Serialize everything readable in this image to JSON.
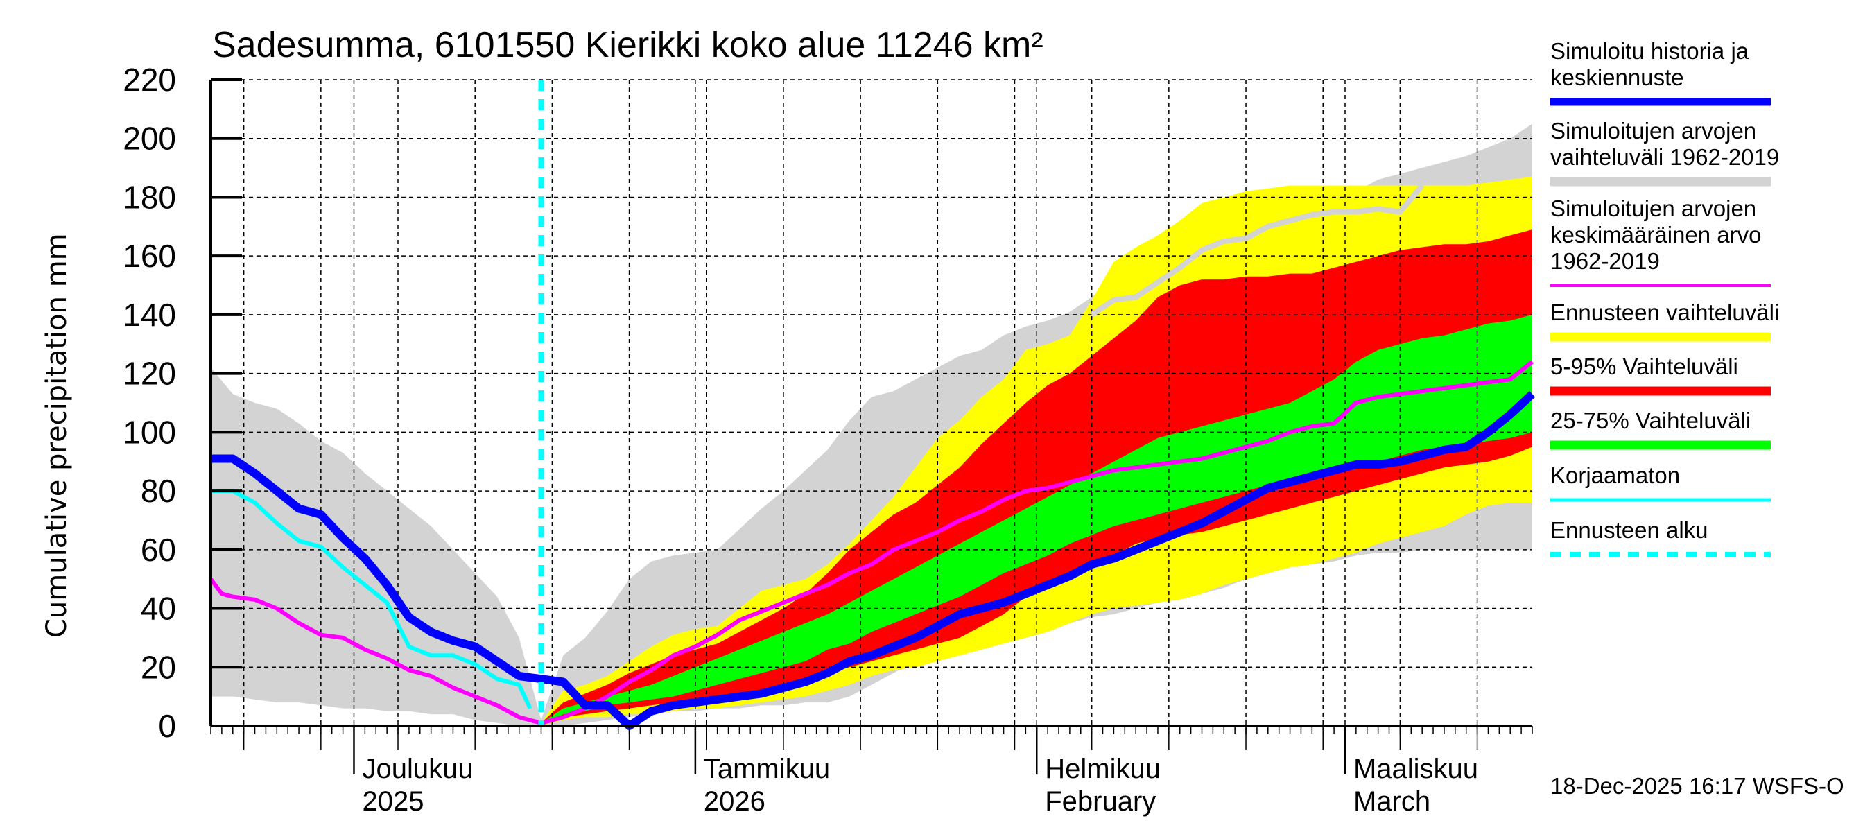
{
  "chart_data": {
    "type": "area",
    "title": "Sadesumma, 6101550 Kierikki koko alue 11246 km²",
    "ylabel": "Cumulative precipitation   mm",
    "xlabel": "",
    "ylim": [
      0,
      220
    ],
    "yticks": [
      0,
      20,
      40,
      60,
      80,
      100,
      120,
      140,
      160,
      180,
      200,
      220
    ],
    "grid": true,
    "x_unit": "days since 18-Nov-2025",
    "xlim": [
      0,
      120
    ],
    "forecast_start_day": 30,
    "month_ticks": [
      {
        "day": 13,
        "line1": "Joulukuu",
        "line2": "2025"
      },
      {
        "day": 44,
        "line1": "Tammikuu",
        "line2": "2026"
      },
      {
        "day": 75,
        "line1": "Helmikuu",
        "line2": "February"
      },
      {
        "day": 103,
        "line1": "Maaliskuu",
        "line2": "March"
      }
    ],
    "legend_position": "right",
    "legend": [
      {
        "key": "history",
        "label_lines": [
          "Simuloitu historia ja",
          "keskiennuste"
        ],
        "color": "#0000ff",
        "style": "thick-line"
      },
      {
        "key": "hist_range",
        "label_lines": [
          "Simuloitujen arvojen",
          "vaihteluväli 1962-2019"
        ],
        "color": "#d3d3d3",
        "style": "band"
      },
      {
        "key": "hist_mean",
        "label_lines": [
          "Simuloitujen arvojen",
          "keskimääräinen arvo",
          "   1962-2019"
        ],
        "color": "#ff00ff",
        "style": "line"
      },
      {
        "key": "fc_range",
        "label_lines": [
          "Ennusteen vaihteluväli"
        ],
        "color": "#ffff00",
        "style": "band"
      },
      {
        "key": "p5_95",
        "label_lines": [
          "5-95% Vaihteluväli"
        ],
        "color": "#ff0000",
        "style": "band"
      },
      {
        "key": "p25_75",
        "label_lines": [
          "25-75% Vaihteluväli"
        ],
        "color": "#00ff00",
        "style": "band"
      },
      {
        "key": "uncorrected",
        "label_lines": [
          "Korjaamaton"
        ],
        "color": "#00ffff",
        "style": "line"
      },
      {
        "key": "fc_start",
        "label_lines": [
          "Ennusteen alku"
        ],
        "color": "#00ffff",
        "style": "dashed"
      }
    ],
    "series": {
      "hist_range_upper": {
        "x": [
          0,
          2,
          4,
          6,
          8,
          10,
          12,
          14,
          16,
          18,
          20,
          22,
          24,
          26,
          28,
          30,
          32,
          34,
          36,
          38,
          40,
          42,
          44,
          46,
          48,
          50,
          52,
          54,
          56,
          58,
          60,
          62,
          64,
          66,
          68,
          70,
          72,
          74,
          76,
          78,
          80,
          82,
          84,
          86,
          88,
          90,
          92,
          94,
          96,
          98,
          100,
          102,
          104,
          106,
          108,
          110,
          112,
          114,
          116,
          118,
          120
        ],
        "values": [
          122,
          113,
          110,
          108,
          103,
          97,
          93,
          86,
          80,
          74,
          68,
          60,
          52,
          44,
          30,
          2,
          24,
          30,
          39,
          50,
          56,
          58,
          59,
          60,
          67,
          74,
          80,
          87,
          94,
          104,
          112,
          114,
          118,
          122,
          126,
          128,
          133,
          136,
          138,
          141,
          146,
          152,
          156,
          160,
          164,
          166,
          170,
          172,
          174,
          176,
          176,
          176,
          182,
          186,
          188,
          190,
          192,
          194,
          197,
          200,
          205
        ]
      },
      "hist_range_lower": {
        "x": [
          0,
          2,
          4,
          6,
          8,
          10,
          12,
          14,
          16,
          18,
          20,
          22,
          24,
          26,
          28,
          30,
          32,
          34,
          36,
          38,
          40,
          42,
          44,
          46,
          48,
          50,
          52,
          54,
          56,
          58,
          60,
          62,
          64,
          66,
          68,
          70,
          72,
          74,
          76,
          78,
          80,
          82,
          84,
          86,
          88,
          90,
          92,
          94,
          96,
          98,
          100,
          102,
          104,
          106,
          108,
          110,
          112,
          114,
          116,
          118,
          120
        ],
        "values": [
          10,
          10,
          9,
          8,
          8,
          7,
          6,
          6,
          5,
          5,
          4,
          4,
          2,
          1,
          0,
          0,
          0,
          1,
          2,
          3,
          4,
          5,
          5,
          6,
          6,
          7,
          7,
          8,
          8,
          10,
          14,
          18,
          22,
          24,
          26,
          27,
          28,
          30,
          32,
          35,
          37,
          38,
          40,
          42,
          43,
          45,
          47,
          50,
          52,
          54,
          55,
          56,
          58,
          59,
          59,
          60,
          60,
          60,
          60,
          60,
          60
        ]
      },
      "fc_range_upper": {
        "x": [
          30,
          32,
          34,
          36,
          38,
          40,
          42,
          44,
          46,
          48,
          50,
          52,
          54,
          56,
          58,
          60,
          62,
          64,
          66,
          68,
          70,
          72,
          74,
          76,
          78,
          80,
          82,
          84,
          86,
          88,
          90,
          92,
          94,
          96,
          98,
          100,
          102,
          104,
          106,
          108,
          110,
          112,
          114,
          116,
          118,
          120
        ],
        "values": [
          1,
          12,
          14,
          17,
          22,
          27,
          31,
          33,
          34,
          40,
          46,
          48,
          50,
          55,
          62,
          70,
          78,
          88,
          98,
          104,
          112,
          118,
          128,
          130,
          133,
          145,
          158,
          163,
          167,
          172,
          178,
          180,
          182,
          183,
          184,
          184,
          184,
          184,
          184,
          184,
          184,
          184,
          184,
          185,
          186,
          187
        ]
      },
      "fc_range_lower": {
        "x": [
          30,
          32,
          34,
          36,
          38,
          40,
          42,
          44,
          46,
          48,
          50,
          52,
          54,
          56,
          58,
          60,
          62,
          64,
          66,
          68,
          70,
          72,
          74,
          76,
          78,
          80,
          82,
          84,
          86,
          88,
          90,
          92,
          94,
          96,
          98,
          100,
          102,
          104,
          106,
          108,
          110,
          112,
          114,
          116,
          118,
          120
        ],
        "values": [
          0,
          2,
          3,
          3,
          4,
          4,
          5,
          6,
          6,
          7,
          8,
          9,
          10,
          12,
          14,
          17,
          19,
          20,
          22,
          24,
          26,
          28,
          30,
          32,
          35,
          38,
          40,
          41,
          42,
          43,
          45,
          48,
          50,
          52,
          54,
          55,
          57,
          59,
          62,
          64,
          66,
          68,
          72,
          75,
          76,
          76
        ]
      },
      "p5_95_upper": {
        "x": [
          30,
          32,
          34,
          36,
          38,
          40,
          42,
          44,
          46,
          48,
          50,
          52,
          54,
          56,
          58,
          60,
          62,
          64,
          66,
          68,
          70,
          72,
          74,
          76,
          78,
          80,
          82,
          84,
          86,
          88,
          90,
          92,
          94,
          96,
          98,
          100,
          102,
          104,
          106,
          108,
          110,
          112,
          114,
          116,
          118,
          120
        ],
        "values": [
          1,
          8,
          11,
          14,
          18,
          21,
          24,
          26,
          28,
          32,
          36,
          40,
          45,
          52,
          60,
          66,
          72,
          76,
          82,
          88,
          96,
          103,
          110,
          116,
          120,
          126,
          132,
          138,
          146,
          150,
          152,
          152,
          153,
          153,
          154,
          154,
          156,
          158,
          160,
          162,
          163,
          164,
          164,
          165,
          167,
          169
        ]
      },
      "p5_95_lower": {
        "x": [
          30,
          32,
          34,
          36,
          38,
          40,
          42,
          44,
          46,
          48,
          50,
          52,
          54,
          56,
          58,
          60,
          62,
          64,
          66,
          68,
          70,
          72,
          74,
          76,
          78,
          80,
          82,
          84,
          86,
          88,
          90,
          92,
          94,
          96,
          98,
          100,
          102,
          104,
          106,
          108,
          110,
          112,
          114,
          116,
          118,
          120
        ],
        "values": [
          0,
          3,
          4,
          5,
          6,
          7,
          8,
          9,
          10,
          11,
          12,
          14,
          16,
          18,
          20,
          22,
          24,
          26,
          28,
          30,
          34,
          38,
          44,
          48,
          50,
          54,
          58,
          62,
          64,
          65,
          66,
          68,
          70,
          72,
          74,
          76,
          78,
          80,
          82,
          84,
          86,
          88,
          89,
          90,
          92,
          95
        ]
      },
      "p25_75_upper": {
        "x": [
          30,
          32,
          34,
          36,
          38,
          40,
          42,
          44,
          46,
          48,
          50,
          52,
          54,
          56,
          58,
          60,
          62,
          64,
          66,
          68,
          70,
          72,
          74,
          76,
          78,
          80,
          82,
          84,
          86,
          88,
          90,
          92,
          94,
          96,
          98,
          100,
          102,
          104,
          106,
          108,
          110,
          112,
          114,
          116,
          118,
          120
        ],
        "values": [
          1,
          6,
          8,
          10,
          12,
          14,
          17,
          20,
          23,
          26,
          29,
          32,
          35,
          38,
          42,
          46,
          50,
          54,
          58,
          62,
          66,
          70,
          74,
          78,
          82,
          86,
          90,
          94,
          98,
          100,
          102,
          104,
          106,
          108,
          110,
          114,
          118,
          124,
          128,
          130,
          132,
          133,
          135,
          137,
          138,
          140
        ]
      },
      "p25_75_lower": {
        "x": [
          30,
          32,
          34,
          36,
          38,
          40,
          42,
          44,
          46,
          48,
          50,
          52,
          54,
          56,
          58,
          60,
          62,
          64,
          66,
          68,
          70,
          72,
          74,
          76,
          78,
          80,
          82,
          84,
          86,
          88,
          90,
          92,
          94,
          96,
          98,
          100,
          102,
          104,
          106,
          108,
          110,
          112,
          114,
          116,
          118,
          120
        ],
        "values": [
          0,
          4,
          5,
          7,
          8,
          9,
          10,
          12,
          14,
          16,
          18,
          20,
          22,
          26,
          28,
          32,
          35,
          38,
          41,
          44,
          48,
          52,
          55,
          58,
          62,
          65,
          68,
          70,
          72,
          74,
          76,
          78,
          80,
          82,
          84,
          84,
          86,
          88,
          90,
          92,
          94,
          95,
          96,
          97,
          98,
          100
        ]
      },
      "history_mean": {
        "x": [
          0,
          2,
          4,
          6,
          8,
          10,
          12,
          14,
          16,
          18,
          20,
          22,
          24,
          26,
          28,
          30,
          32,
          34,
          36,
          38,
          40,
          42,
          44,
          46,
          48,
          50,
          52,
          54,
          56,
          58,
          60,
          62,
          64,
          66,
          68,
          70,
          72,
          74,
          76,
          78,
          80,
          82,
          84,
          86,
          88,
          90,
          92,
          94,
          96,
          98,
          100,
          102,
          104,
          106,
          108,
          110,
          112,
          114,
          116,
          118,
          120
        ],
        "values": [
          91,
          91,
          86,
          80,
          74,
          72,
          64,
          57,
          48,
          37,
          32,
          29,
          27,
          22,
          17,
          16,
          15,
          7,
          7,
          0,
          5,
          7,
          8,
          9,
          10,
          11,
          13,
          15,
          18,
          22,
          24,
          27,
          30,
          34,
          38,
          40,
          42,
          45,
          48,
          51,
          55,
          57,
          60,
          63,
          66,
          69,
          73,
          77,
          81,
          83,
          85,
          87,
          89,
          89,
          90,
          92,
          94,
          95,
          100,
          106,
          113
        ]
      },
      "uncorrected": {
        "x": [
          0,
          2,
          4,
          6,
          8,
          10,
          12,
          14,
          16,
          18,
          20,
          22,
          24,
          26,
          28,
          29
        ],
        "values": [
          80,
          80,
          76,
          69,
          63,
          61,
          54,
          48,
          42,
          27,
          24,
          24,
          21,
          16,
          14,
          6
        ]
      },
      "hist_mean_magenta": {
        "x": [
          0,
          1,
          2,
          4,
          6,
          8,
          10,
          12,
          14,
          16,
          18,
          20,
          22,
          24,
          26,
          28,
          30,
          32,
          34,
          36,
          38,
          40,
          42,
          44,
          46,
          48,
          50,
          52,
          54,
          56,
          58,
          60,
          62,
          64,
          66,
          68,
          70,
          72,
          74,
          76,
          78,
          80,
          82,
          84,
          86,
          88,
          90,
          92,
          94,
          96,
          98,
          100,
          102,
          104,
          106,
          108,
          110,
          112,
          114,
          116,
          118,
          120
        ],
        "values": [
          50,
          45,
          44,
          43,
          40,
          35,
          31,
          30,
          26,
          23,
          19,
          17,
          13,
          10,
          7,
          3,
          1,
          3,
          6,
          10,
          15,
          19,
          24,
          27,
          31,
          36,
          39,
          42,
          45,
          48,
          52,
          55,
          60,
          63,
          66,
          70,
          73,
          77,
          80,
          81,
          83,
          85,
          87,
          88,
          89,
          90,
          91,
          93,
          95,
          97,
          100,
          102,
          103,
          110,
          112,
          113,
          114,
          115,
          116,
          117,
          118,
          124
        ]
      },
      "upper_light_gray_line": {
        "x": [
          80,
          82,
          84,
          86,
          88,
          90,
          92,
          94,
          96,
          98,
          100,
          102,
          104,
          106,
          108,
          110
        ],
        "values": [
          140,
          145,
          146,
          151,
          156,
          162,
          165,
          166,
          170,
          172,
          174,
          175,
          175,
          176,
          175,
          184
        ]
      }
    }
  },
  "footer": {
    "timestamp": "18-Dec-2025 16:17 WSFS-O"
  }
}
